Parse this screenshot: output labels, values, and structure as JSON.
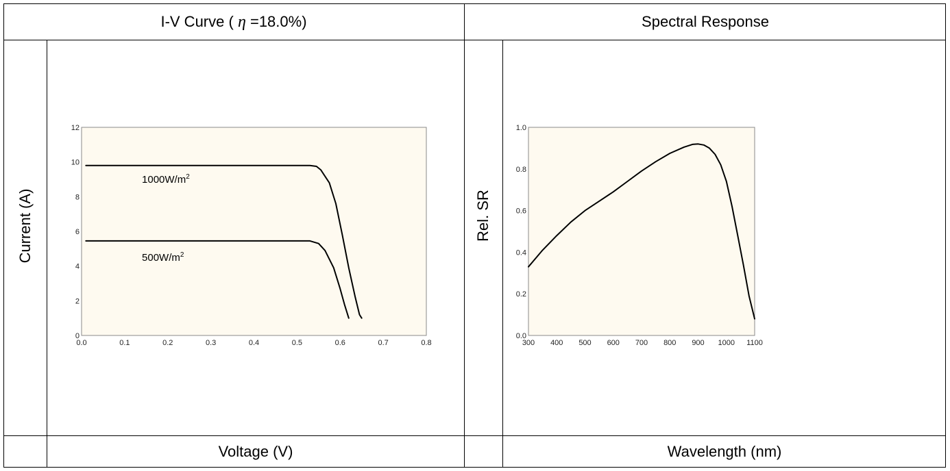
{
  "headers": {
    "iv": "I-V Curve (",
    "iv_eta": "η",
    "iv_tail": " =18.0%)",
    "sr": "Spectral Response"
  },
  "footers": {
    "iv": "Voltage (V)",
    "sr": "Wavelength (nm)"
  },
  "side_labels": {
    "iv": "Current (A)",
    "sr": "Rel. SR"
  },
  "colors": {
    "plot_bg": "#fefaf0",
    "line": "#000000"
  },
  "chart_data": [
    {
      "type": "line",
      "xlim": [
        0.0,
        0.8
      ],
      "ylim": [
        0,
        12
      ],
      "x_ticks": [
        "0.0",
        "0.1",
        "0.2",
        "0.3",
        "0.4",
        "0.5",
        "0.6",
        "0.7",
        "0.8"
      ],
      "y_ticks": [
        "0",
        "2",
        "4",
        "6",
        "8",
        "10",
        "12"
      ],
      "grid": false,
      "annotations": [
        {
          "text": "1000W/m",
          "sup": "2",
          "x": 0.14,
          "y": 8.8
        },
        {
          "text": "500W/m",
          "sup": "2",
          "x": 0.14,
          "y": 4.3
        }
      ],
      "series": [
        {
          "x": [
            0.01,
            0.1,
            0.2,
            0.3,
            0.4,
            0.5,
            0.53,
            0.545,
            0.555,
            0.575,
            0.59,
            0.605,
            0.62,
            0.635,
            0.645,
            0.65
          ],
          "y": [
            9.8,
            9.8,
            9.8,
            9.8,
            9.8,
            9.8,
            9.8,
            9.75,
            9.55,
            8.8,
            7.6,
            5.8,
            3.9,
            2.2,
            1.2,
            1.0
          ]
        },
        {
          "x": [
            0.01,
            0.1,
            0.2,
            0.3,
            0.4,
            0.5,
            0.53,
            0.55,
            0.565,
            0.585,
            0.6,
            0.61,
            0.62
          ],
          "y": [
            5.45,
            5.45,
            5.45,
            5.45,
            5.45,
            5.45,
            5.45,
            5.3,
            4.9,
            3.9,
            2.7,
            1.8,
            1.0
          ]
        }
      ]
    },
    {
      "type": "line",
      "xlim": [
        300,
        1100
      ],
      "ylim": [
        0.0,
        1.0
      ],
      "x_ticks": [
        "300",
        "400",
        "500",
        "600",
        "700",
        "800",
        "900",
        "1000",
        "1100"
      ],
      "y_ticks": [
        "0.0",
        "0.2",
        "0.4",
        "0.6",
        "0.8",
        "1.0"
      ],
      "grid": false,
      "series": [
        {
          "x": [
            300,
            350,
            400,
            450,
            500,
            550,
            600,
            650,
            700,
            750,
            800,
            850,
            880,
            900,
            920,
            940,
            960,
            980,
            1000,
            1020,
            1040,
            1060,
            1080,
            1100
          ],
          "y": [
            0.33,
            0.41,
            0.48,
            0.545,
            0.6,
            0.645,
            0.69,
            0.74,
            0.79,
            0.835,
            0.875,
            0.905,
            0.918,
            0.92,
            0.915,
            0.9,
            0.87,
            0.82,
            0.74,
            0.62,
            0.48,
            0.34,
            0.19,
            0.08
          ]
        }
      ]
    }
  ]
}
